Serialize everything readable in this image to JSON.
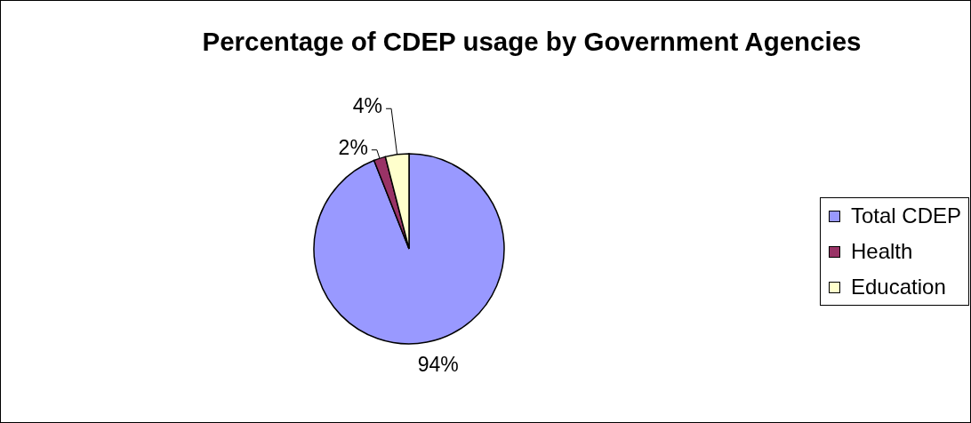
{
  "chart_data": {
    "type": "pie",
    "title": "Percentage of CDEP usage by Government Agencies",
    "categories": [
      "Total CDEP",
      "Health",
      "Education"
    ],
    "values": [
      94,
      2,
      4
    ],
    "colors": [
      "#9999ff",
      "#993366",
      "#ffffcc"
    ],
    "value_labels": [
      "94%",
      "2%",
      "4%"
    ],
    "legend": "right"
  }
}
